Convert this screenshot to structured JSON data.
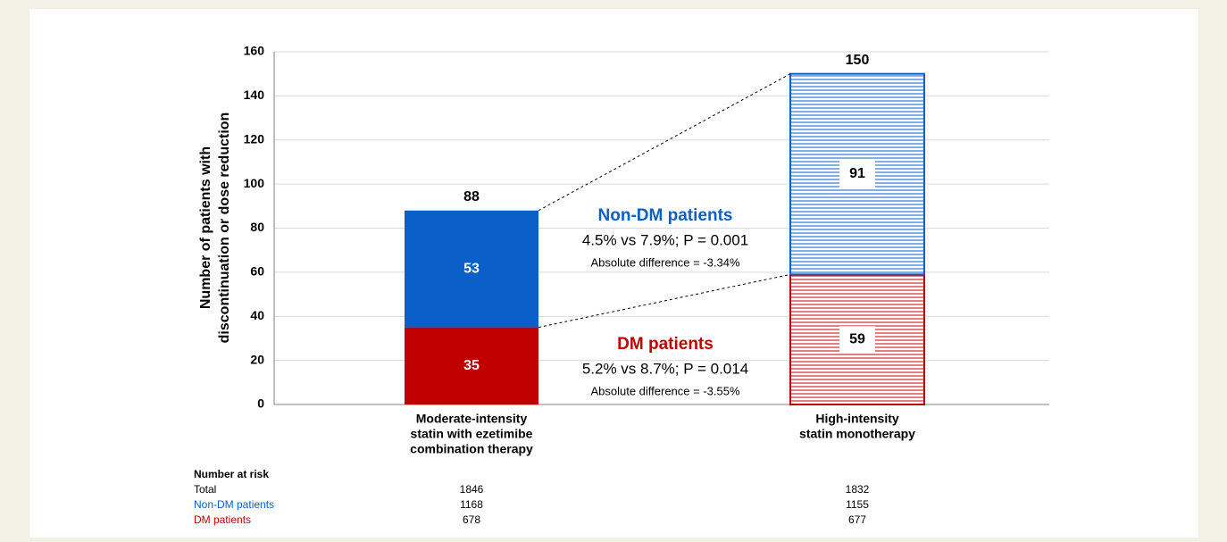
{
  "chart_data": {
    "type": "stacked-bar",
    "y_label": [
      "Number of patients with",
      "discontinuation or dose reduction"
    ],
    "categories": [
      [
        "Moderate-intensity",
        "statin with ezetimibe",
        "combination therapy"
      ],
      [
        "High-intensity",
        "statin monotherapy"
      ]
    ],
    "series": [
      {
        "name": "DM patients",
        "color": "#c00000",
        "values": [
          35,
          59
        ]
      },
      {
        "name": "Non-DM patients",
        "color": "#0a5fc8",
        "values": [
          53,
          91
        ]
      }
    ],
    "hatch": [
      false,
      true
    ],
    "totals": [
      88,
      150
    ],
    "ylim": [
      0,
      160
    ],
    "yticks": [
      0,
      20,
      40,
      60,
      80,
      100,
      120,
      140,
      160
    ],
    "grid": true,
    "annotations": [
      {
        "title": "Non-DM patients",
        "color": "#0a5fc8",
        "stats": "4.5% vs 7.9%; P = 0.001",
        "difference": "Absolute difference = -3.34%"
      },
      {
        "title": "DM patients",
        "color": "#c00000",
        "stats": "5.2% vs 8.7%; P = 0.014",
        "difference": "Absolute difference = -3.55%"
      }
    ],
    "risk_table": {
      "title": "Number at risk",
      "rows": [
        {
          "label": "Total",
          "color": "#000000",
          "values": [
            1846,
            1832
          ]
        },
        {
          "label": "Non-DM patients",
          "color": "#0a5fc8",
          "values": [
            1168,
            1155
          ]
        },
        {
          "label": "DM patients",
          "color": "#c00000",
          "values": [
            678,
            677
          ]
        }
      ]
    }
  }
}
